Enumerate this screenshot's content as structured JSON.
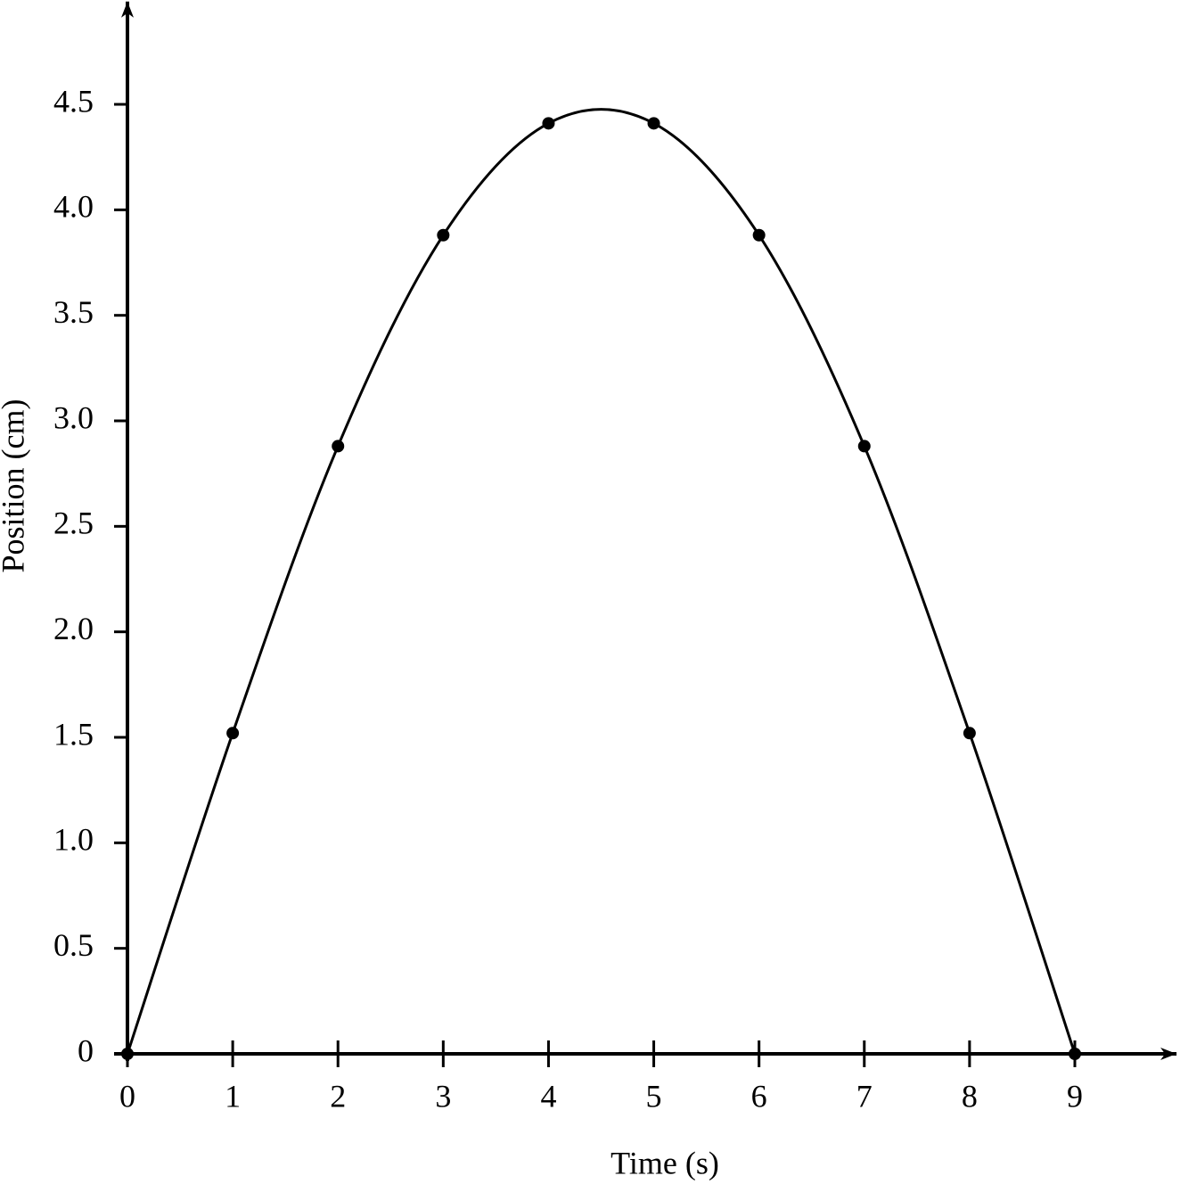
{
  "chart_data": {
    "type": "line",
    "x_label": "Time (s)",
    "y_label": "Position (cm)",
    "x": [
      0,
      1,
      2,
      3,
      4,
      5,
      6,
      7,
      8,
      9
    ],
    "values": [
      0,
      1.52,
      2.88,
      3.88,
      4.41,
      4.41,
      3.88,
      2.88,
      1.52,
      0
    ],
    "color": "#000000",
    "xlim": [
      0,
      10
    ],
    "ylim": [
      0,
      5
    ],
    "xticks": [
      0,
      1,
      2,
      3,
      4,
      5,
      6,
      7,
      8,
      9
    ],
    "yticks": [
      0,
      0.5,
      {
        "value": 1,
        "label": "1.0"
      },
      1.5,
      {
        "value": 2,
        "label": "2.0"
      },
      2.5,
      {
        "value": 3,
        "label": "3.0"
      },
      3.5,
      {
        "value": 4,
        "label": "4.0"
      },
      4.5
    ],
    "grid": false,
    "markers": true
  }
}
